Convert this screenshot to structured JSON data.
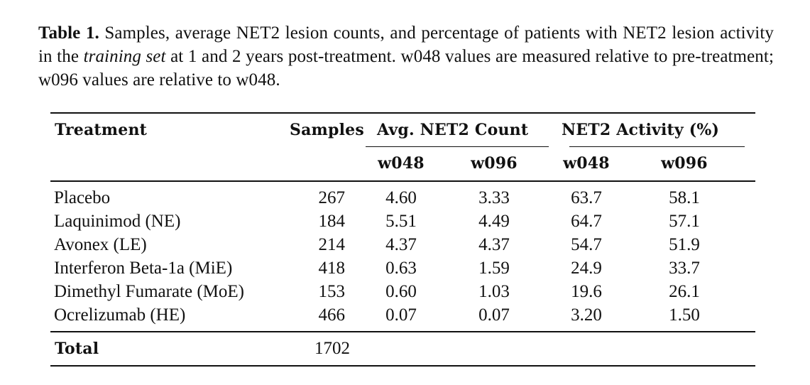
{
  "caption": {
    "label": "Table 1.",
    "text_before_em": " Samples, average NET2 lesion counts, and percentage of patients with NET2 lesion activity in the ",
    "em": "training set",
    "text_after_em": " at 1 and 2 years post-treatment. w048 values are measured relative to pre-treatment; w096 values are relative to w048."
  },
  "table": {
    "headers": {
      "treatment": "Treatment",
      "samples": "Samples",
      "avg_count_group": "Avg. NET2 Count",
      "activity_group": "NET2 Activity (%)",
      "avg_w048": "w048",
      "avg_w096": "w096",
      "act_w048": "w048",
      "act_w096": "w096"
    },
    "rows": [
      {
        "treatment": "Placebo",
        "samples": "267",
        "avg_w048": "4.60",
        "avg_w096": "3.33",
        "act_w048": "63.7",
        "act_w096": "58.1"
      },
      {
        "treatment": "Laquinimod (NE)",
        "samples": "184",
        "avg_w048": "5.51",
        "avg_w096": "4.49",
        "act_w048": "64.7",
        "act_w096": "57.1"
      },
      {
        "treatment": "Avonex (LE)",
        "samples": "214",
        "avg_w048": "4.37",
        "avg_w096": "4.37",
        "act_w048": "54.7",
        "act_w096": "51.9"
      },
      {
        "treatment": "Interferon Beta-1a (MiE)",
        "samples": "418",
        "avg_w048": "0.63",
        "avg_w096": "1.59",
        "act_w048": "24.9",
        "act_w096": "33.7"
      },
      {
        "treatment": "Dimethyl Fumarate (MoE)",
        "samples": "153",
        "avg_w048": "0.60",
        "avg_w096": "1.03",
        "act_w048": "19.6",
        "act_w096": "26.1"
      },
      {
        "treatment": "Ocrelizumab (HE)",
        "samples": "466",
        "avg_w048": "0.07",
        "avg_w096": "0.07",
        "act_w048": "3.20",
        "act_w096": "1.50"
      }
    ],
    "total": {
      "label": "Total",
      "samples": "1702"
    }
  }
}
